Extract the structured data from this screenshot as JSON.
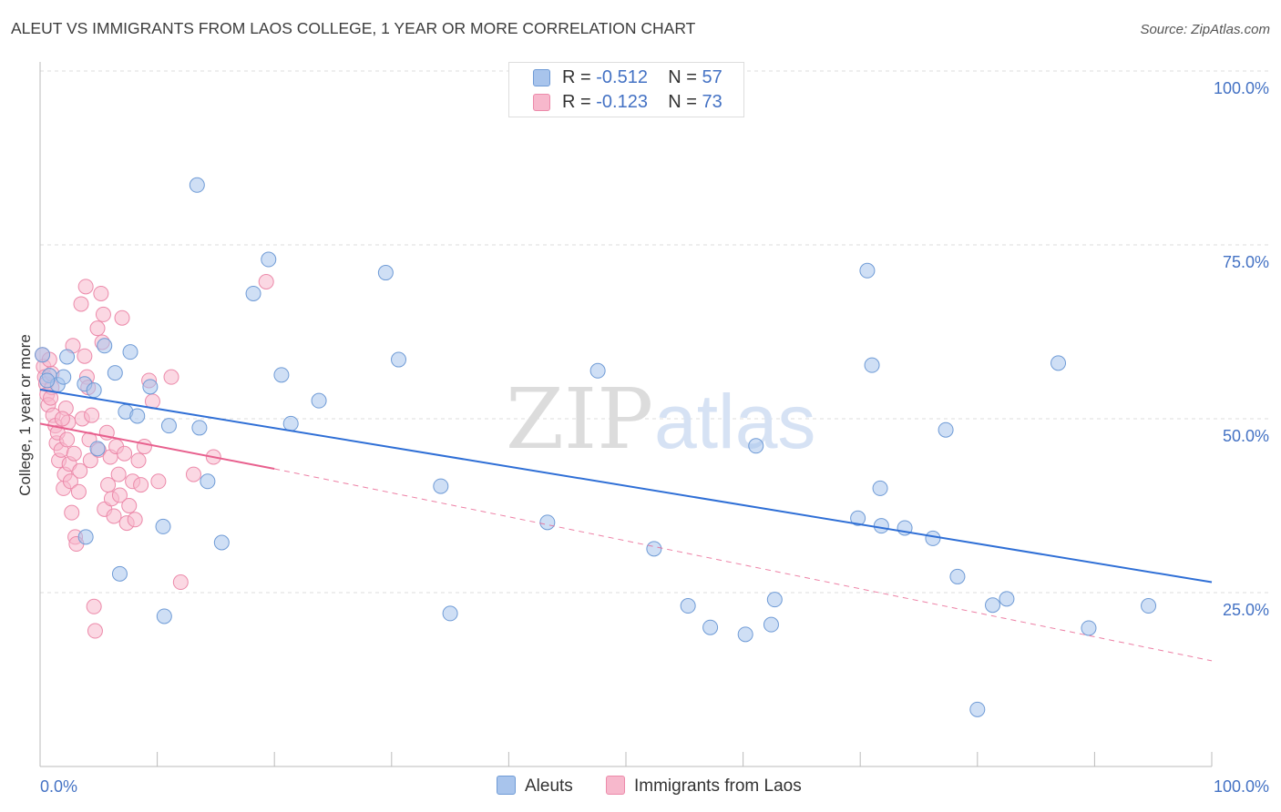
{
  "header": {
    "title": "ALEUT VS IMMIGRANTS FROM LAOS COLLEGE, 1 YEAR OR MORE CORRELATION CHART",
    "source": "Source: ZipAtlas.com"
  },
  "watermark": {
    "zip": "ZIP",
    "atlas": "atlas"
  },
  "legend_top": {
    "rows": [
      {
        "r_label": "R = ",
        "r_value": "-0.512",
        "n_label": "N = ",
        "n_value": "57",
        "color": "#a8c4ec"
      },
      {
        "r_label": "R = ",
        "r_value": "-0.123",
        "n_label": "N = ",
        "n_value": "73",
        "color": "#f7b8cc"
      }
    ]
  },
  "legend_bottom": {
    "items": [
      {
        "label": "Aleuts",
        "color": "#a8c4ec"
      },
      {
        "label": "Immigrants from Laos",
        "color": "#f7b8cc"
      }
    ]
  },
  "colors": {
    "aleut_fill": "#a8c4ec",
    "aleut_stroke": "#6f9bd6",
    "aleut_line": "#2f6fd6",
    "laos_fill": "#f7b8cc",
    "laos_stroke": "#ec8aaa",
    "laos_line": "#e8608e",
    "tick_label": "#4472c4",
    "grid": "#dddddd"
  },
  "chart_data": {
    "type": "scatter",
    "title": "ALEUT VS IMMIGRANTS FROM LAOS COLLEGE, 1 YEAR OR MORE CORRELATION CHART",
    "xlabel": "",
    "ylabel": "College, 1 year or more",
    "xlim": [
      0,
      100
    ],
    "ylim": [
      0,
      100
    ],
    "x_tick_labels": [
      "0.0%",
      "100.0%"
    ],
    "y_tick_labels": [
      "100.0%",
      "75.0%",
      "50.0%",
      "25.0%"
    ],
    "y_ticks": [
      100,
      75,
      50,
      25
    ],
    "grid": true,
    "legend_position": "top-center",
    "series": [
      {
        "name": "Aleuts",
        "points": [
          [
            0.2,
            59.2
          ],
          [
            0.8,
            56.2
          ],
          [
            1.5,
            54.9
          ],
          [
            2.3,
            58.9
          ],
          [
            3.8,
            55.0
          ],
          [
            3.9,
            33.0
          ],
          [
            4.6,
            54.1
          ],
          [
            4.9,
            45.7
          ],
          [
            5.5,
            60.5
          ],
          [
            6.4,
            56.6
          ],
          [
            6.8,
            27.7
          ],
          [
            7.3,
            51.0
          ],
          [
            7.7,
            59.6
          ],
          [
            8.3,
            50.4
          ],
          [
            9.4,
            54.6
          ],
          [
            10.5,
            34.5
          ],
          [
            10.6,
            21.6
          ],
          [
            11.0,
            49.0
          ],
          [
            13.4,
            83.6
          ],
          [
            13.6,
            48.7
          ],
          [
            14.3,
            41.0
          ],
          [
            15.5,
            32.2
          ],
          [
            18.2,
            68.0
          ],
          [
            19.5,
            72.9
          ],
          [
            20.6,
            56.3
          ],
          [
            21.4,
            49.3
          ],
          [
            23.8,
            52.6
          ],
          [
            29.5,
            71.0
          ],
          [
            30.6,
            58.5
          ],
          [
            34.2,
            40.3
          ],
          [
            35.0,
            22.0
          ],
          [
            43.3,
            35.1
          ],
          [
            47.6,
            56.9
          ],
          [
            52.4,
            31.3
          ],
          [
            55.3,
            23.1
          ],
          [
            57.2,
            20.0
          ],
          [
            60.2,
            19.0
          ],
          [
            61.1,
            46.1
          ],
          [
            62.4,
            20.4
          ],
          [
            62.7,
            24.0
          ],
          [
            69.8,
            35.7
          ],
          [
            70.6,
            71.3
          ],
          [
            71.0,
            57.7
          ],
          [
            71.7,
            40.0
          ],
          [
            71.8,
            34.6
          ],
          [
            73.8,
            34.3
          ],
          [
            76.2,
            32.8
          ],
          [
            77.3,
            48.4
          ],
          [
            78.3,
            27.3
          ],
          [
            80.0,
            8.2
          ],
          [
            81.3,
            23.2
          ],
          [
            82.5,
            24.1
          ],
          [
            86.9,
            58.0
          ],
          [
            89.5,
            19.9
          ],
          [
            94.6,
            23.1
          ],
          [
            2.0,
            56.0
          ],
          [
            0.6,
            55.5
          ]
        ]
      },
      {
        "name": "Immigrants from Laos",
        "points": [
          [
            0.2,
            59.2
          ],
          [
            0.3,
            57.5
          ],
          [
            0.4,
            56.0
          ],
          [
            0.5,
            55.0
          ],
          [
            0.6,
            53.5
          ],
          [
            0.7,
            52.0
          ],
          [
            0.8,
            58.5
          ],
          [
            1.0,
            54.5
          ],
          [
            1.1,
            50.5
          ],
          [
            1.3,
            49.0
          ],
          [
            1.4,
            46.5
          ],
          [
            1.5,
            48.0
          ],
          [
            1.6,
            44.0
          ],
          [
            1.8,
            45.5
          ],
          [
            2.0,
            40.0
          ],
          [
            2.1,
            42.0
          ],
          [
            2.2,
            51.5
          ],
          [
            2.3,
            47.0
          ],
          [
            2.4,
            49.5
          ],
          [
            2.5,
            43.5
          ],
          [
            2.6,
            41.0
          ],
          [
            2.7,
            36.5
          ],
          [
            2.8,
            60.5
          ],
          [
            3.0,
            33.0
          ],
          [
            3.1,
            32.0
          ],
          [
            3.3,
            39.5
          ],
          [
            3.4,
            42.5
          ],
          [
            3.5,
            66.5
          ],
          [
            3.6,
            50.0
          ],
          [
            3.8,
            59.0
          ],
          [
            3.9,
            69.0
          ],
          [
            4.0,
            56.0
          ],
          [
            4.1,
            54.5
          ],
          [
            4.2,
            47.0
          ],
          [
            4.3,
            44.0
          ],
          [
            4.4,
            50.5
          ],
          [
            4.6,
            23.0
          ],
          [
            4.7,
            19.5
          ],
          [
            4.9,
            63.0
          ],
          [
            5.0,
            45.5
          ],
          [
            5.2,
            68.0
          ],
          [
            5.3,
            61.0
          ],
          [
            5.4,
            65.0
          ],
          [
            5.5,
            37.0
          ],
          [
            5.7,
            48.0
          ],
          [
            5.8,
            40.5
          ],
          [
            6.0,
            44.5
          ],
          [
            6.1,
            38.5
          ],
          [
            6.3,
            36.0
          ],
          [
            6.5,
            46.0
          ],
          [
            6.7,
            42.0
          ],
          [
            6.8,
            39.0
          ],
          [
            7.0,
            64.5
          ],
          [
            7.2,
            45.0
          ],
          [
            7.4,
            35.0
          ],
          [
            7.6,
            37.5
          ],
          [
            7.9,
            41.0
          ],
          [
            8.1,
            35.5
          ],
          [
            8.4,
            44.0
          ],
          [
            8.6,
            40.5
          ],
          [
            8.9,
            46.0
          ],
          [
            9.3,
            55.5
          ],
          [
            9.6,
            52.5
          ],
          [
            10.1,
            41.0
          ],
          [
            11.2,
            56.0
          ],
          [
            12.0,
            26.5
          ],
          [
            13.1,
            42.0
          ],
          [
            14.8,
            44.5
          ],
          [
            19.3,
            69.7
          ],
          [
            1.0,
            56.5
          ],
          [
            1.9,
            50.0
          ],
          [
            2.9,
            45.0
          ],
          [
            0.9,
            53.0
          ]
        ]
      }
    ],
    "trend_lines": [
      {
        "series": "Aleuts",
        "from": [
          0,
          54.2
        ],
        "to": [
          100,
          26.5
        ],
        "style": "solid"
      },
      {
        "series": "Immigrants from Laos",
        "solid_from": [
          0,
          49.3
        ],
        "solid_to": [
          20,
          42.8
        ],
        "dashed_to": [
          100,
          15.2
        ]
      }
    ]
  }
}
